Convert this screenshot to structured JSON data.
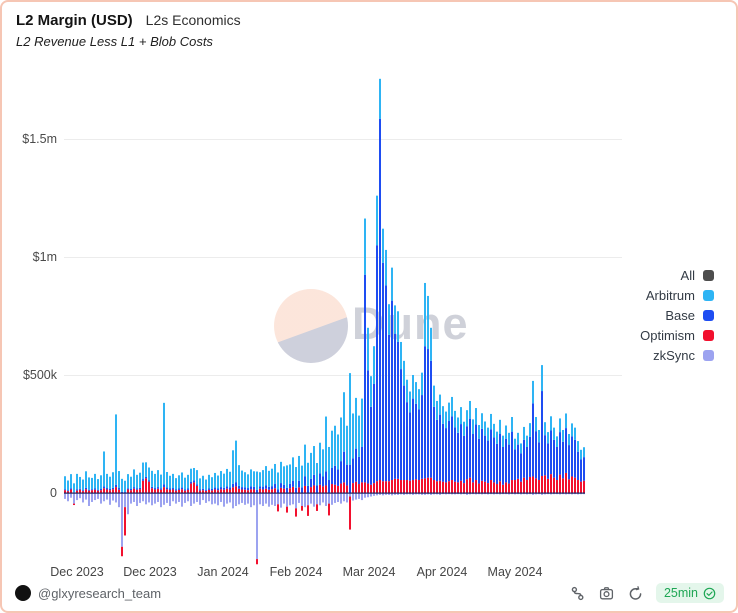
{
  "header": {
    "title": "L2 Margin (USD)",
    "dashboard": "L2s Economics",
    "subtitle": "L2 Revenue Less L1 + Blob Costs"
  },
  "watermark": {
    "text": "Dune"
  },
  "y_axis": {
    "ticks": [
      "$1.5m",
      "$1m",
      "$500k",
      "0"
    ],
    "values_k": [
      1500,
      1000,
      500,
      0
    ]
  },
  "x_axis": {
    "ticks": [
      "Dec 2023",
      "Dec 2023",
      "Jan 2024",
      "Feb 2024",
      "Mar 2024",
      "Apr 2024",
      "May 2024"
    ]
  },
  "legend": [
    {
      "label": "All",
      "color": "#4d4d4d"
    },
    {
      "label": "Arbitrum",
      "color": "#2eb4f4"
    },
    {
      "label": "Base",
      "color": "#1e4df2"
    },
    {
      "label": "Optimism",
      "color": "#f2102e"
    },
    {
      "label": "zkSync",
      "color": "#9ca3f0"
    }
  ],
  "footer": {
    "handle": "@glxyresearch_team",
    "badge_label": "25min"
  },
  "chart_data": {
    "type": "bar",
    "stacked": true,
    "title": "L2 Margin (USD)",
    "subtitle": "L2 Revenue Less L1 + Blob Costs",
    "units": "USD thousands",
    "interval": "daily",
    "approx_start": "2023-11-27",
    "approx_end": "2024-05-18",
    "grid": true,
    "legend_position": "right",
    "ylim_k": [
      -300,
      1800
    ],
    "y_grid_k": [
      1500,
      1000,
      500
    ],
    "y_tick_labels": [
      "$1.5m",
      "$1m",
      "$500k",
      "0"
    ],
    "x_tick_labels": [
      "Dec 2023",
      "Dec 2023",
      "Jan 2024",
      "Feb 2024",
      "Mar 2024",
      "Apr 2024",
      "May 2024"
    ],
    "series": [
      {
        "name": "Optimism",
        "color": "#f2102e",
        "values": [
          12,
          8,
          15,
          -6,
          10,
          14,
          8,
          16,
          10,
          12,
          14,
          10,
          12,
          20,
          15,
          12,
          16,
          25,
          14,
          -40,
          -120,
          15,
          12,
          18,
          14,
          16,
          52,
          62,
          48,
          20,
          15,
          18,
          14,
          25,
          16,
          13,
          15,
          10,
          13,
          16,
          10,
          13,
          40,
          45,
          30,
          10,
          12,
          9,
          13,
          11,
          15,
          12,
          16,
          14,
          18,
          15,
          24,
          28,
          18,
          15,
          14,
          12,
          16,
          15,
          -22,
          18,
          15,
          18,
          14,
          16,
          20,
          -30,
          22,
          18,
          -25,
          20,
          26,
          -35,
          24,
          -20,
          30,
          -45,
          25,
          32,
          -28,
          35,
          28,
          32,
          -50,
          38,
          35,
          30,
          40,
          45,
          32,
          -140,
          42,
          48,
          38,
          45,
          45,
          40,
          35,
          42,
          50,
          55,
          50,
          50,
          50,
          55,
          60,
          60,
          55,
          55,
          55,
          52,
          55,
          58,
          55,
          60,
          62,
          65,
          65,
          55,
          50,
          52,
          48,
          45,
          50,
          55,
          48,
          45,
          52,
          42,
          58,
          65,
          45,
          55,
          40,
          52,
          48,
          42,
          55,
          45,
          38,
          50,
          35,
          45,
          40,
          55,
          55,
          60,
          48,
          65,
          55,
          68,
          70,
          62,
          55,
          72,
          75,
          60,
          80,
          65,
          55,
          78,
          62,
          85,
          58,
          70,
          65,
          55,
          48,
          52
        ]
      },
      {
        "name": "Base",
        "color": "#1e4df2",
        "values": [
          4,
          3,
          5,
          3,
          6,
          4,
          4,
          6,
          4,
          4,
          5,
          4,
          5,
          8,
          6,
          5,
          6,
          10,
          7,
          5,
          4,
          5,
          5,
          7,
          5,
          6,
          7,
          6,
          5,
          6,
          6,
          7,
          6,
          12,
          7,
          6,
          6,
          5,
          6,
          7,
          5,
          6,
          8,
          9,
          7,
          5,
          6,
          5,
          6,
          6,
          8,
          7,
          9,
          8,
          10,
          9,
          15,
          18,
          12,
          10,
          10,
          9,
          12,
          11,
          13,
          10,
          12,
          14,
          12,
          13,
          18,
          15,
          20,
          17,
          22,
          19,
          25,
          22,
          28,
          24,
          40,
          30,
          35,
          45,
          32,
          48,
          42,
          60,
          55,
          68,
          80,
          70,
          95,
          130,
          88,
          120,
          105,
          140,
          115,
          150,
          880,
          480,
          330,
          420,
          1000,
          1530,
          925,
          830,
          620,
          760,
          615,
          580,
          470,
          400,
          330,
          290,
          345,
          320,
          300,
          355,
          560,
          545,
          495,
          310,
          260,
          280,
          245,
          230,
          255,
          270,
          230,
          210,
          240,
          200,
          225,
          250,
          205,
          235,
          190,
          220,
          195,
          180,
          215,
          190,
          170,
          200,
          160,
          185,
          165,
          205,
          130,
          145,
          120,
          160,
          140,
          170,
          310,
          200,
          160,
          360,
          170,
          150,
          185,
          160,
          140,
          180,
          155,
          190,
          145,
          170,
          160,
          120,
          95,
          100
        ]
      },
      {
        "name": "Arbitrum",
        "color": "#2eb4f4",
        "values": [
          55,
          42,
          60,
          38,
          65,
          50,
          45,
          70,
          52,
          48,
          62,
          45,
          58,
          148,
          60,
          52,
          66,
          298,
          72,
          55,
          48,
          60,
          52,
          75,
          58,
          64,
          70,
          62,
          55,
          68,
          60,
          72,
          58,
          345,
          66,
          54,
          60,
          48,
          56,
          64,
          50,
          58,
          55,
          52,
          60,
          47,
          55,
          43,
          58,
          50,
          62,
          55,
          68,
          60,
          74,
          66,
          142,
          176,
          88,
          70,
          64,
          58,
          72,
          66,
          78,
          60,
          70,
          82,
          68,
          74,
          85,
          72,
          90,
          78,
          95,
          82,
          100,
          88,
          105,
          92,
          135,
          98,
          110,
          122,
          95,
          130,
          115,
          232,
          140,
          158,
          170,
          148,
          185,
          252,
          165,
          388,
          190,
          215,
          175,
          205,
          238,
          180,
          130,
          160,
          210,
          170,
          145,
          150,
          130,
          140,
          120,
          130,
          115,
          105,
          95,
          88,
          100,
          92,
          85,
          95,
          268,
          225,
          140,
          90,
          80,
          85,
          75,
          70,
          78,
          82,
          70,
          65,
          72,
          60,
          68,
          75,
          62,
          70,
          58,
          66,
          60,
          55,
          65,
          58,
          52,
          60,
          48,
          56,
          50,
          62,
          45,
          50,
          42,
          55,
          48,
          58,
          95,
          60,
          52,
          110,
          55,
          48,
          60,
          52,
          45,
          58,
          50,
          62,
          47,
          55,
          52,
          45,
          40,
          42
        ]
      },
      {
        "name": "zkSync",
        "color": "#9ca3f0",
        "values": [
          -25,
          -35,
          -20,
          -45,
          -30,
          -22,
          -40,
          -28,
          -55,
          -38,
          -30,
          -25,
          -45,
          -35,
          -28,
          -50,
          -32,
          -40,
          -60,
          -228,
          -60,
          -90,
          -45,
          -38,
          -55,
          -42,
          -35,
          -48,
          -40,
          -52,
          -45,
          -38,
          -60,
          -50,
          -42,
          -55,
          -35,
          -45,
          -38,
          -58,
          -42,
          -35,
          -55,
          -45,
          -38,
          -50,
          -30,
          -42,
          -35,
          -48,
          -45,
          -52,
          -38,
          -58,
          -45,
          -40,
          -65,
          -55,
          -48,
          -42,
          -50,
          -45,
          -60,
          -52,
          -280,
          -48,
          -55,
          -45,
          -58,
          -50,
          -55,
          -48,
          -62,
          -45,
          -58,
          -52,
          -48,
          -65,
          -42,
          -55,
          -60,
          -52,
          -45,
          -58,
          -48,
          -52,
          -40,
          -55,
          -45,
          -50,
          -42,
          -38,
          -45,
          -35,
          -40,
          -15,
          -32,
          -28,
          -25,
          -30,
          -20,
          -18,
          -15,
          -12,
          -10,
          -8,
          -10,
          -8,
          -8,
          -10,
          -8,
          -8,
          -6,
          -8,
          -6,
          -6,
          -8,
          -6,
          -6,
          -8,
          -8,
          -6,
          -8,
          -6,
          -6,
          -8,
          -5,
          -6,
          -5,
          -6,
          -6,
          -5,
          -6,
          -5,
          -8,
          -6,
          -5,
          -6,
          -5,
          -6,
          -5,
          -6,
          -5,
          -6,
          -5,
          -6,
          -5,
          -5,
          -6,
          -5,
          -6,
          -5,
          -6,
          -5,
          -6,
          -5,
          -8,
          -6,
          -5,
          -8,
          -6,
          -5,
          -6,
          -5,
          -5,
          -6,
          -5,
          -6,
          -5,
          -6,
          -5,
          -6,
          -5,
          -5
        ]
      }
    ]
  }
}
